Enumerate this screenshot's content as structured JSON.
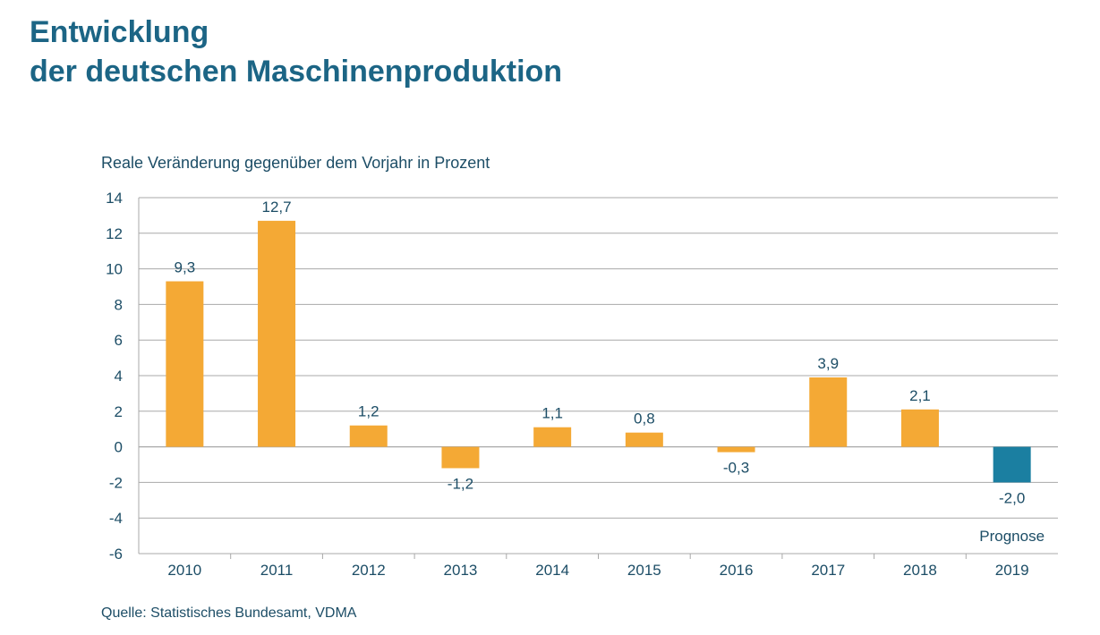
{
  "header": {
    "title_line1": "Entwicklung",
    "title_line2": "der deutschen Maschinenproduktion"
  },
  "footer": {
    "source": "Quelle: Statistisches Bundesamt, VDMA"
  },
  "colors": {
    "title": "#1c6585",
    "actual_bar": "#f4a935",
    "forecast_bar": "#1b7fa1",
    "text": "#1c4d66",
    "grid": "#a8a8a8"
  },
  "chart_data": {
    "type": "bar",
    "ylabel": "Reale Veränderung gegenüber dem Vorjahr in Prozent",
    "xlabel": "",
    "categories": [
      "2010",
      "2011",
      "2012",
      "2013",
      "2014",
      "2015",
      "2016",
      "2017",
      "2018",
      "2019"
    ],
    "values": [
      9.3,
      12.7,
      1.2,
      -1.2,
      1.1,
      0.8,
      -0.3,
      3.9,
      2.1,
      -2.0
    ],
    "data_labels": [
      "9,3",
      "12,7",
      "1,2",
      "-1,2",
      "1,1",
      "0,8",
      "-0,3",
      "3,9",
      "2,1",
      "-2,0"
    ],
    "forecast": [
      false,
      false,
      false,
      false,
      false,
      false,
      false,
      false,
      false,
      true
    ],
    "annotations": [
      {
        "category": "2019",
        "text": "Prognose"
      }
    ],
    "ylim": [
      -6,
      14
    ],
    "yticks": [
      14,
      12,
      10,
      8,
      6,
      4,
      2,
      0,
      -2,
      -4,
      -6
    ],
    "ytick_labels": [
      "14",
      "12",
      "10",
      "8",
      "6",
      "4",
      "2",
      "0",
      "-2",
      "-4",
      "-6"
    ],
    "grid": true,
    "legend": "none"
  }
}
